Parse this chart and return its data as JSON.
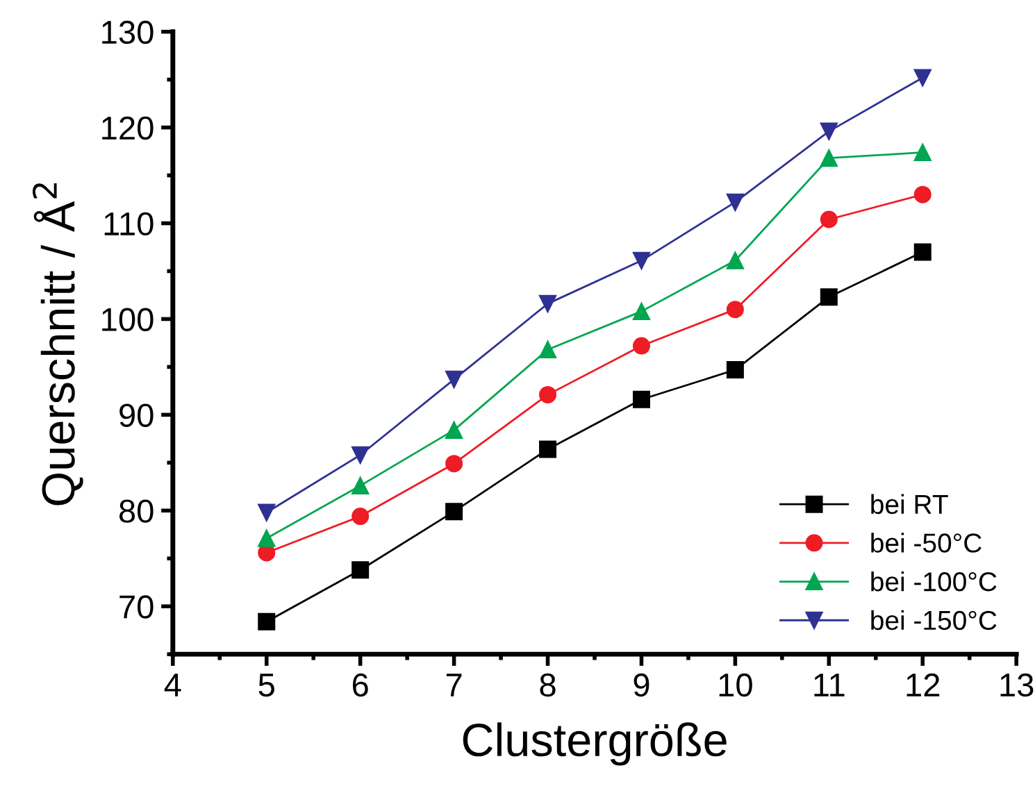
{
  "chart_data": {
    "type": "line",
    "xlabel": "Clustergröße",
    "ylabel": "Querschnitt / Å$^{2}$",
    "x": [
      5,
      6,
      7,
      8,
      9,
      10,
      11,
      12
    ],
    "xlim": [
      4,
      13
    ],
    "xticks": [
      4,
      5,
      6,
      7,
      8,
      9,
      10,
      11,
      12,
      13
    ],
    "ylim": [
      65,
      130
    ],
    "yticks": [
      70,
      80,
      90,
      100,
      110,
      120,
      130
    ],
    "grid": false,
    "legend": "bottom right",
    "line_style": "solid",
    "series": [
      {
        "name": "bei RT",
        "color": "#000000",
        "marker": "square",
        "values": [
          68.4,
          73.8,
          79.9,
          86.4,
          91.6,
          94.7,
          102.3,
          107.0
        ]
      },
      {
        "name": "bei -50°C",
        "color": "#ee1c25",
        "marker": "circle",
        "values": [
          75.6,
          79.4,
          84.9,
          92.1,
          97.2,
          101.0,
          110.4,
          113.0
        ]
      },
      {
        "name": "bei -100°C",
        "color": "#00a650",
        "marker": "triangle",
        "values": [
          77.1,
          82.6,
          88.4,
          96.8,
          100.8,
          106.1,
          116.8,
          117.4
        ]
      },
      {
        "name": "bei -150°C",
        "color": "#2e3192",
        "marker": "triangle_down",
        "values": [
          79.8,
          85.8,
          93.7,
          101.6,
          106.1,
          112.2,
          119.6,
          125.2
        ]
      }
    ]
  }
}
